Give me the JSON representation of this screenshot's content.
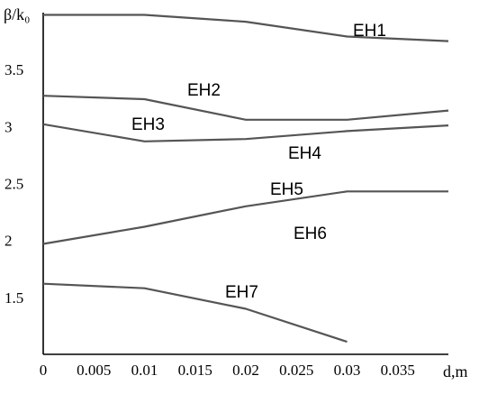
{
  "chart_data": {
    "type": "line",
    "title": "",
    "xlabel": "d,m",
    "ylabel": "β/k₀",
    "xlim": [
      0,
      0.04
    ],
    "ylim": [
      1.0,
      4.0
    ],
    "grid": false,
    "x_ticks": [
      "0",
      "0.005",
      "0.01",
      "0.015",
      "0.02",
      "0.025",
      "0.03",
      "0.035"
    ],
    "y_ticks": [
      "1.5",
      "2",
      "2.5",
      "3",
      "3.5"
    ],
    "series": [
      {
        "name": "EH1",
        "x": [
          0,
          0.01,
          0.02,
          0.03,
          0.04
        ],
        "y": [
          3.98,
          3.98,
          3.92,
          3.79,
          3.75
        ]
      },
      {
        "name": "EH2",
        "x": [
          0,
          0.01,
          0.02,
          0.03,
          0.04
        ],
        "y": [
          3.27,
          3.24,
          3.06,
          3.06,
          3.14
        ]
      },
      {
        "name": "EH3",
        "x": [
          0,
          0.01,
          0.02,
          0.03,
          0.04
        ],
        "y": [
          3.02,
          2.87,
          2.89,
          2.96,
          3.01
        ]
      },
      {
        "name": "EH4",
        "x": [],
        "y": []
      },
      {
        "name": "EH5",
        "x": [
          0,
          0.01,
          0.02,
          0.03,
          0.04
        ],
        "y": [
          1.97,
          2.12,
          2.3,
          2.43,
          2.43
        ]
      },
      {
        "name": "EH6",
        "x": [],
        "y": []
      },
      {
        "name": "EH7",
        "x": [
          0,
          0.01,
          0.02,
          0.03
        ],
        "y": [
          1.62,
          1.58,
          1.4,
          1.11
        ]
      }
    ]
  }
}
